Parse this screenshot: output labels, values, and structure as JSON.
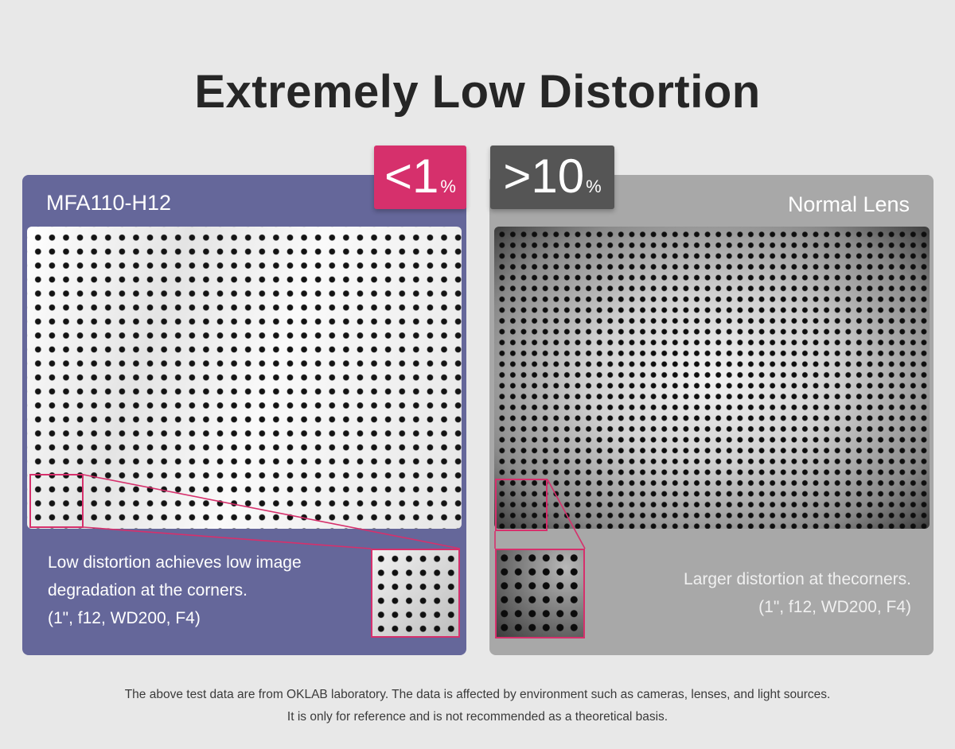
{
  "title": "Extremely Low Distortion",
  "left_panel": {
    "name": "MFA110-H12",
    "badge": {
      "value": "<1",
      "unit": "%"
    },
    "description": [
      "Low distortion achieves low image",
      "degradation at the corners.",
      "(1\", f12, WD200, F4)"
    ]
  },
  "right_panel": {
    "name": "Normal Lens",
    "badge": {
      "value": ">10",
      "unit": "%"
    },
    "description": [
      "Larger distortion at thecorners.",
      "(1\", f12, WD200, F4)"
    ]
  },
  "footer": [
    "The above test data are from OKLAB laboratory. The data is affected by environment such as cameras, lenses, and light sources.",
    "It is only for reference and is not recommended as a theoretical basis."
  ],
  "colors": {
    "accent": "#d6306c",
    "left_panel_bg": "#65679a",
    "right_panel_bg": "#a8a8a8",
    "right_badge_bg": "#555555"
  }
}
